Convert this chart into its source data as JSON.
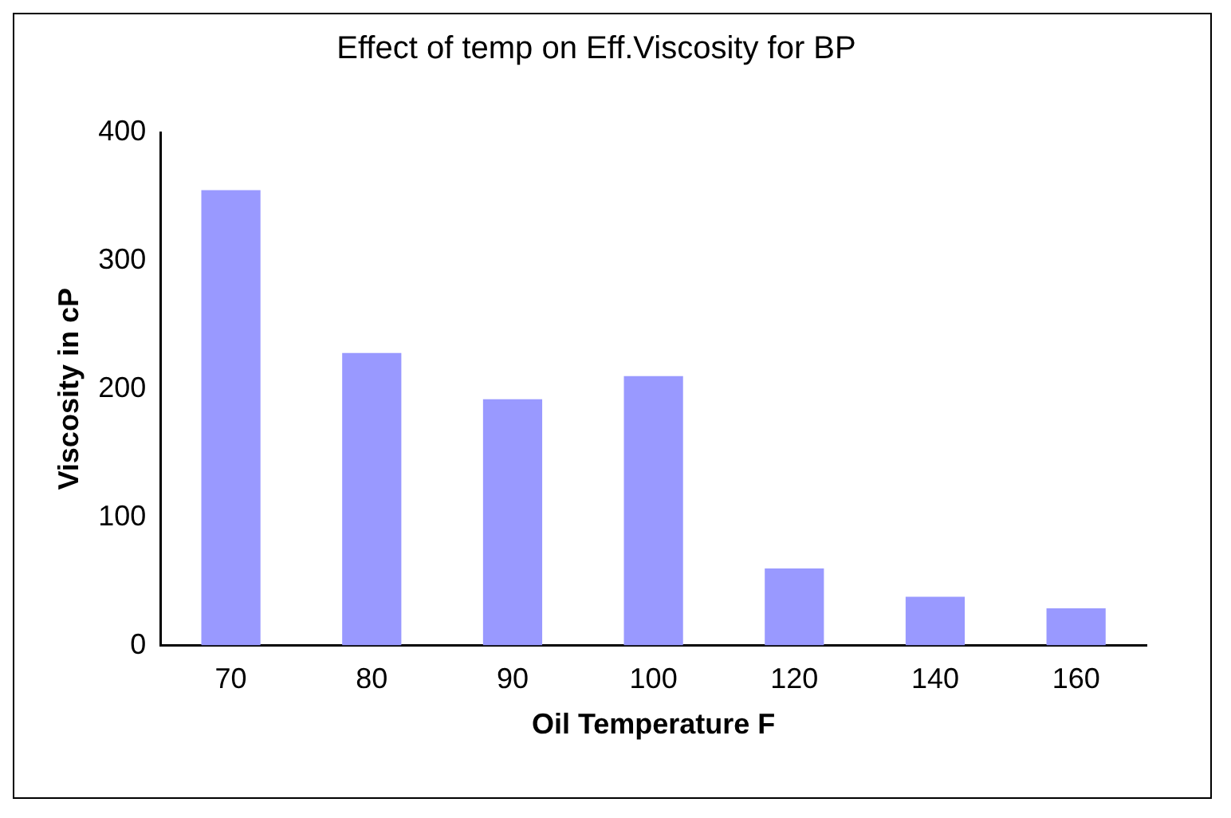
{
  "chart_data": {
    "type": "bar",
    "title": "Effect of temp on Eff.Viscosity for BP",
    "xlabel": "Oil Temperature F",
    "ylabel": "Viscosity in cP",
    "categories": [
      "70",
      "80",
      "90",
      "100",
      "120",
      "140",
      "160"
    ],
    "values": [
      355,
      228,
      192,
      210,
      60,
      38,
      29
    ],
    "color": "#9999ff",
    "ylim": [
      0,
      400
    ],
    "yticks": [
      0,
      100,
      200,
      300,
      400
    ],
    "grid": false,
    "legend": false
  }
}
